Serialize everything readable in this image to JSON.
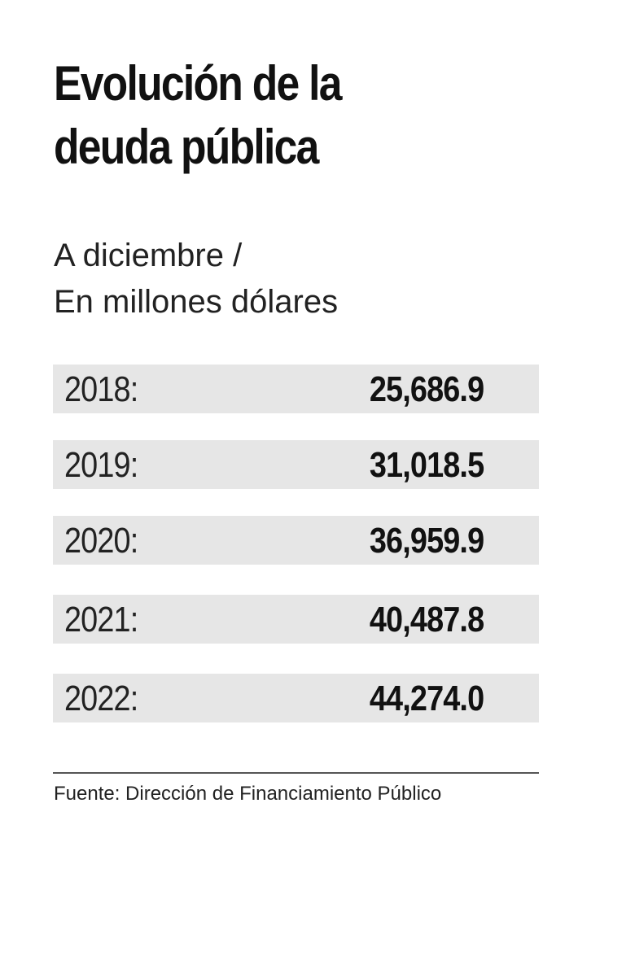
{
  "title_line1": "Evolución de la",
  "title_line2": "deuda pública",
  "subtitle_line1": "A diciembre /",
  "subtitle_line2": "En millones dólares",
  "source": "Fuente: Dirección de Financiamiento Público",
  "colors": {
    "row_background": "#e6e6e6",
    "text": "#111111",
    "rule": "#555555"
  },
  "chart_data": {
    "type": "table",
    "title": "Evolución de la deuda pública",
    "subtitle": "A diciembre / En millones dólares",
    "rows": [
      {
        "year": "2018:",
        "value": "25,686.9"
      },
      {
        "year": "2019:",
        "value": "31,018.5"
      },
      {
        "year": "2020:",
        "value": "36,959.9"
      },
      {
        "year": "2021:",
        "value": "40,487.8"
      },
      {
        "year": "2022:",
        "value": "44,274.0"
      }
    ]
  }
}
